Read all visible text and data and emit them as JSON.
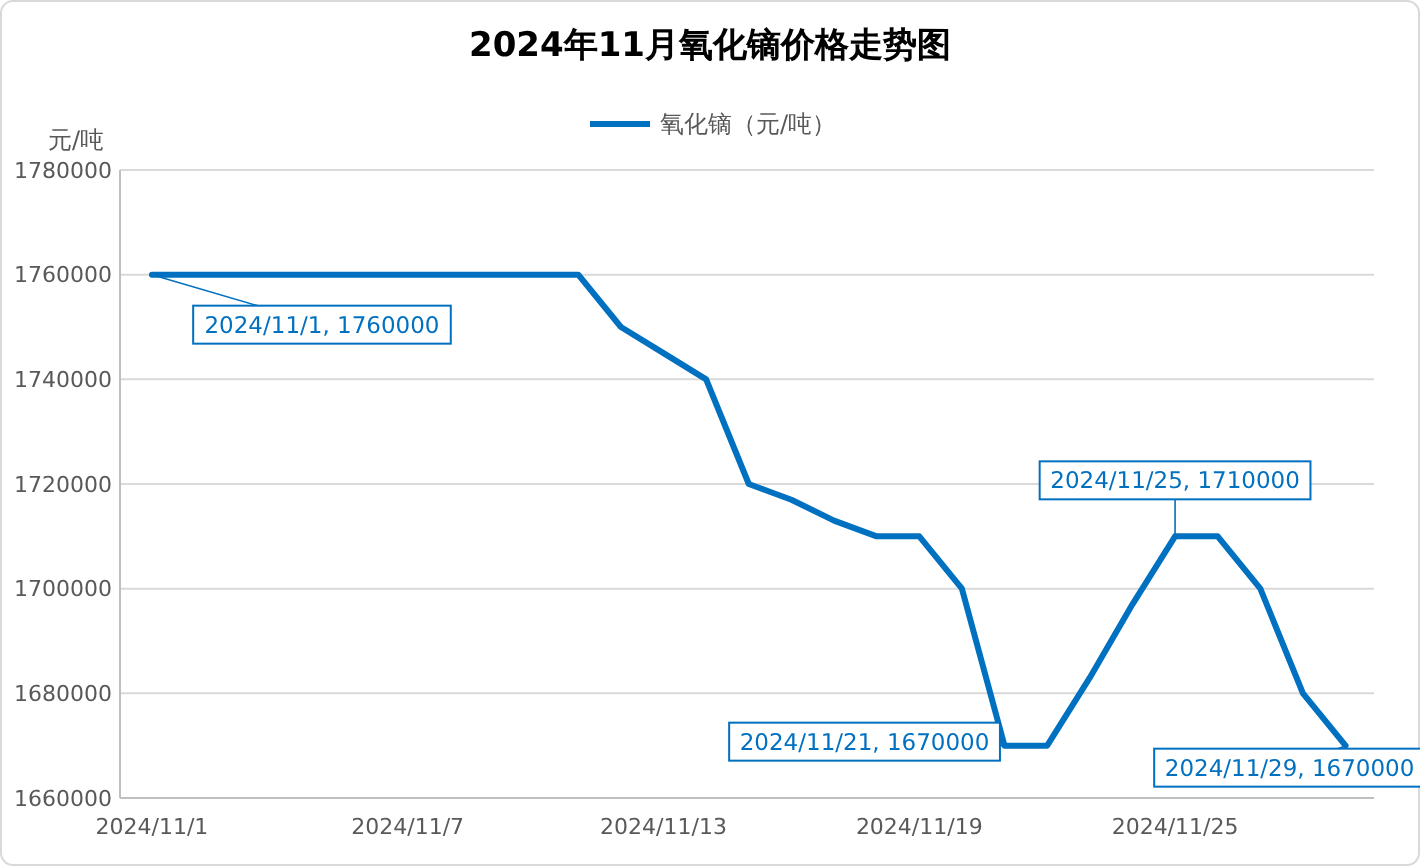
{
  "chart_data": {
    "type": "line",
    "title": "2024年11月氧化镝价格走势图",
    "ylabel": "元/吨",
    "x": [
      "2024-11-01",
      "2024-11-02",
      "2024-11-03",
      "2024-11-04",
      "2024-11-05",
      "2024-11-06",
      "2024-11-07",
      "2024-11-08",
      "2024-11-09",
      "2024-11-10",
      "2024-11-11",
      "2024-11-12",
      "2024-11-13",
      "2024-11-14",
      "2024-11-15",
      "2024-11-16",
      "2024-11-17",
      "2024-11-18",
      "2024-11-19",
      "2024-11-20",
      "2024-11-21",
      "2024-11-22",
      "2024-11-23",
      "2024-11-24",
      "2024-11-25",
      "2024-11-26",
      "2024-11-27",
      "2024-11-28",
      "2024-11-29"
    ],
    "series": [
      {
        "name": "氧化镝（元/吨）",
        "color": "#0070c0",
        "values": [
          1760000,
          1760000,
          1760000,
          1760000,
          1760000,
          1760000,
          1760000,
          1760000,
          1760000,
          1760000,
          1760000,
          1750000,
          1745000,
          1740000,
          1720000,
          1717000,
          1713000,
          1710000,
          1710000,
          1700000,
          1670000,
          1670000,
          1683000,
          1697000,
          1710000,
          1710000,
          1700000,
          1680000,
          1670000
        ]
      }
    ],
    "xlim": [
      "2024-10-31T06:00",
      "2024-11-29T16:00"
    ],
    "xticks": [
      {
        "value": "2024-11-01",
        "label": "2024/11/1"
      },
      {
        "value": "2024-11-07",
        "label": "2024/11/7"
      },
      {
        "value": "2024-11-13",
        "label": "2024/11/13"
      },
      {
        "value": "2024-11-19",
        "label": "2024/11/19"
      },
      {
        "value": "2024-11-25",
        "label": "2024/11/25"
      }
    ],
    "ylim": [
      1660000,
      1780000
    ],
    "yticks": [
      1660000,
      1680000,
      1700000,
      1720000,
      1740000,
      1760000,
      1780000
    ],
    "grid": "y",
    "legend": "top",
    "marker": "none",
    "line_style": "solid",
    "annotations": [
      {
        "text": "2024/11/1, 1760000",
        "x": "2024-11-01",
        "y": 1760000
      },
      {
        "text": "2024/11/21, 1670000",
        "x": "2024-11-21",
        "y": 1670000
      },
      {
        "text": "2024/11/25, 1710000",
        "x": "2024-11-25",
        "y": 1710000
      },
      {
        "text": "2024/11/29, 1670000",
        "x": "2024-11-29",
        "y": 1670000
      }
    ]
  }
}
